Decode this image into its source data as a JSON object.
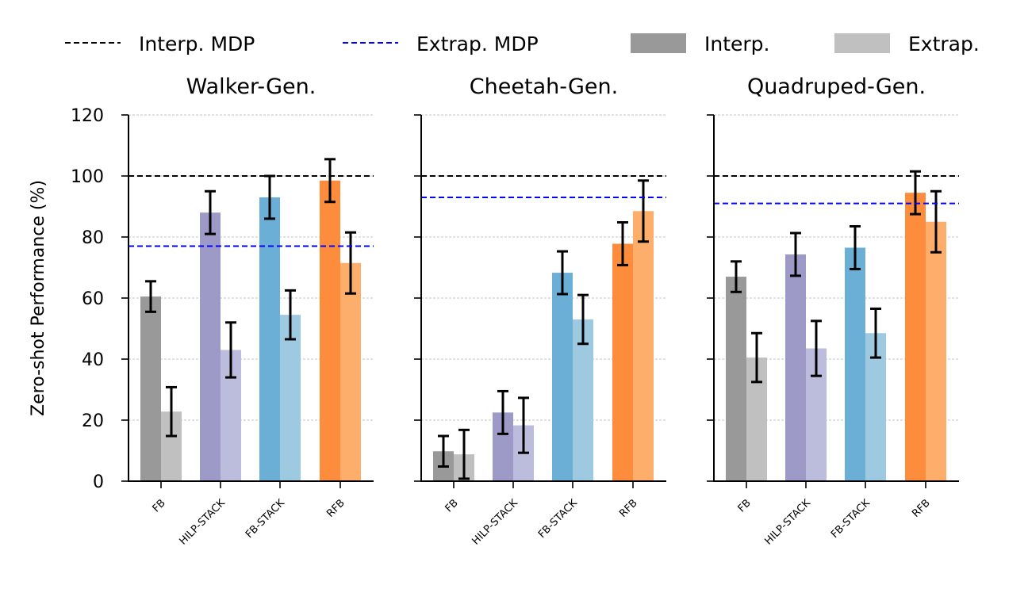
{
  "chart_data": {
    "type": "bar",
    "ylabel": "Zero-shot Performance (%)",
    "ylim": [
      0,
      120
    ],
    "yticks": [
      0,
      20,
      40,
      60,
      80,
      100,
      120
    ],
    "grid": true,
    "legend_placement": "top",
    "legend": [
      {
        "label": "Interp. MDP",
        "kind": "dashed-line",
        "color": "#000000"
      },
      {
        "label": "Extrap. MDP",
        "kind": "dashed-line",
        "color": "#0000ff"
      },
      {
        "label": "Interp.",
        "kind": "patch",
        "color": "#999999"
      },
      {
        "label": "Extrap.",
        "kind": "patch",
        "color": "#c0c0c0"
      }
    ],
    "categories": [
      "FB",
      "HILP-STACK",
      "FB-STACK",
      "RFB"
    ],
    "colors": {
      "FB": {
        "interp": "#999999",
        "extrap": "#c0c0c0"
      },
      "HILP-STACK": {
        "interp": "#9e9ac8",
        "extrap": "#bcbddc"
      },
      "FB-STACK": {
        "interp": "#6baed6",
        "extrap": "#9ecae1"
      },
      "RFB": {
        "interp": "#fd8d3c",
        "extrap": "#fdae6b"
      }
    },
    "panels": [
      {
        "title": "Walker-Gen.",
        "interp_mdp": 100,
        "extrap_mdp": 77,
        "interp": [
          60.5,
          88,
          93,
          98.5
        ],
        "interp_err": [
          5,
          7,
          7,
          7
        ],
        "extrap": [
          22.8,
          43,
          54.5,
          71.5
        ],
        "extrap_err": [
          8,
          9,
          8,
          10
        ]
      },
      {
        "title": "Cheetah-Gen.",
        "interp_mdp": 100,
        "extrap_mdp": 93,
        "interp": [
          9.8,
          22.5,
          68.3,
          77.8
        ],
        "interp_err": [
          5,
          7,
          7,
          7
        ],
        "extrap": [
          8.8,
          18.3,
          53,
          88.5
        ],
        "extrap_err": [
          8,
          9,
          8,
          10
        ]
      },
      {
        "title": "Quadruped-Gen.",
        "interp_mdp": 100,
        "extrap_mdp": 91,
        "interp": [
          67,
          74.3,
          76.5,
          94.5
        ],
        "interp_err": [
          5,
          7,
          7,
          7
        ],
        "extrap": [
          40.5,
          43.5,
          48.5,
          85
        ],
        "extrap_err": [
          8,
          9,
          8,
          10
        ]
      }
    ]
  }
}
